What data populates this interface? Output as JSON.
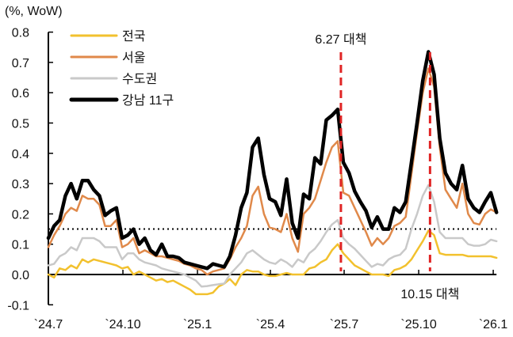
{
  "chart_data": {
    "type": "line",
    "unit_label": "(%, WoW)",
    "ylim": [
      -0.1,
      0.8
    ],
    "yticks": [
      "0.8",
      "0.7",
      "0.6",
      "0.5",
      "0.4",
      "0.3",
      "0.2",
      "0.1",
      "0.0",
      "-0.1"
    ],
    "ytick_values": [
      0.8,
      0.7,
      0.6,
      0.5,
      0.4,
      0.3,
      0.2,
      0.1,
      0.0,
      -0.1
    ],
    "xticks": [
      {
        "date": "2024-07-01",
        "label": "`24.7"
      },
      {
        "date": "2024-10-01",
        "label": "`24.10"
      },
      {
        "date": "2025-01-01",
        "label": "`25.1"
      },
      {
        "date": "2025-04-01",
        "label": "`25.4"
      },
      {
        "date": "2025-07-01",
        "label": "`25.7"
      },
      {
        "date": "2025-10-01",
        "label": "`25.10"
      },
      {
        "date": "2026-01-01",
        "label": "`26.1"
      }
    ],
    "grid": false,
    "legend_placement": "top-left",
    "reference_line": {
      "y": 0.15,
      "style": "dotted",
      "color": "#000000"
    },
    "annotations": [
      {
        "date": "2025-06-27",
        "label": "6.27 대책",
        "label_position": "top",
        "color": "#E02424"
      },
      {
        "date": "2025-10-15",
        "label": "10.15 대책",
        "label_position": "bottom",
        "color": "#E02424"
      }
    ],
    "x": [
      "2024-07-01",
      "2024-07-08",
      "2024-07-15",
      "2024-07-22",
      "2024-07-29",
      "2024-08-05",
      "2024-08-12",
      "2024-08-19",
      "2024-08-26",
      "2024-09-02",
      "2024-09-09",
      "2024-09-16",
      "2024-09-23",
      "2024-09-30",
      "2024-10-07",
      "2024-10-14",
      "2024-10-21",
      "2024-10-28",
      "2024-11-04",
      "2024-11-11",
      "2024-11-18",
      "2024-11-25",
      "2024-12-02",
      "2024-12-09",
      "2024-12-16",
      "2024-12-23",
      "2024-12-30",
      "2025-01-06",
      "2025-01-13",
      "2025-01-20",
      "2025-01-27",
      "2025-02-03",
      "2025-02-10",
      "2025-02-17",
      "2025-02-24",
      "2025-03-03",
      "2025-03-10",
      "2025-03-17",
      "2025-03-24",
      "2025-03-31",
      "2025-04-07",
      "2025-04-14",
      "2025-04-21",
      "2025-04-28",
      "2025-05-05",
      "2025-05-12",
      "2025-05-19",
      "2025-05-26",
      "2025-06-02",
      "2025-06-09",
      "2025-06-16",
      "2025-06-23",
      "2025-06-30",
      "2025-07-07",
      "2025-07-14",
      "2025-07-21",
      "2025-07-28",
      "2025-08-04",
      "2025-08-11",
      "2025-08-18",
      "2025-08-25",
      "2025-09-01",
      "2025-09-08",
      "2025-09-15",
      "2025-09-22",
      "2025-09-29",
      "2025-10-06",
      "2025-10-13",
      "2025-10-20",
      "2025-10-27",
      "2025-11-03",
      "2025-11-10",
      "2025-11-17",
      "2025-11-24",
      "2025-12-01",
      "2025-12-08",
      "2025-12-15",
      "2025-12-22",
      "2025-12-29",
      "2026-01-05"
    ],
    "series": [
      {
        "name": "전국",
        "color": "#F2C12E",
        "values": [
          0.0,
          -0.01,
          0.02,
          0.015,
          0.03,
          0.02,
          0.05,
          0.04,
          0.05,
          0.045,
          0.04,
          0.035,
          0.03,
          0.02,
          0.025,
          0.0,
          0.01,
          0.0,
          -0.01,
          -0.02,
          -0.015,
          -0.025,
          -0.02,
          -0.03,
          -0.04,
          -0.05,
          -0.065,
          -0.065,
          -0.065,
          -0.06,
          -0.04,
          -0.03,
          -0.015,
          -0.035,
          0.0,
          0.015,
          0.01,
          0.01,
          0.0,
          -0.005,
          -0.005,
          0.0,
          0.005,
          0.0,
          0.0,
          0.0,
          0.02,
          0.025,
          0.04,
          0.05,
          0.08,
          0.1,
          0.07,
          0.05,
          0.03,
          0.02,
          0.01,
          0.0,
          0.0,
          0.0,
          -0.005,
          0.015,
          0.02,
          0.03,
          0.05,
          0.08,
          0.11,
          0.145,
          0.13,
          0.07,
          0.065,
          0.065,
          0.065,
          0.065,
          0.06,
          0.06,
          0.06,
          0.06,
          0.06,
          0.055
        ]
      },
      {
        "name": "서울",
        "color": "#E0894A",
        "values": [
          0.09,
          0.13,
          0.16,
          0.2,
          0.22,
          0.21,
          0.26,
          0.25,
          0.25,
          0.23,
          0.16,
          0.16,
          0.18,
          0.09,
          0.1,
          0.12,
          0.07,
          0.08,
          0.07,
          0.06,
          0.06,
          0.055,
          0.05,
          0.045,
          0.035,
          0.03,
          0.02,
          0.015,
          0.0,
          0.01,
          0.015,
          0.02,
          0.05,
          0.09,
          0.12,
          0.16,
          0.26,
          0.29,
          0.2,
          0.155,
          0.15,
          0.14,
          0.2,
          0.12,
          0.075,
          0.2,
          0.22,
          0.25,
          0.31,
          0.37,
          0.42,
          0.44,
          0.27,
          0.26,
          0.22,
          0.18,
          0.14,
          0.095,
          0.12,
          0.1,
          0.12,
          0.16,
          0.17,
          0.19,
          0.33,
          0.47,
          0.6,
          0.68,
          0.62,
          0.42,
          0.28,
          0.25,
          0.22,
          0.3,
          0.2,
          0.17,
          0.165,
          0.2,
          0.215,
          0.205
        ]
      },
      {
        "name": "수도권",
        "color": "#C9C9C9",
        "values": [
          0.03,
          0.035,
          0.06,
          0.07,
          0.09,
          0.08,
          0.12,
          0.12,
          0.12,
          0.11,
          0.09,
          0.09,
          0.09,
          0.05,
          0.07,
          0.07,
          0.05,
          0.04,
          0.035,
          0.03,
          0.02,
          0.015,
          0.01,
          0.005,
          0.0,
          -0.01,
          -0.02,
          -0.04,
          -0.038,
          -0.035,
          -0.032,
          -0.03,
          0.0,
          0.02,
          0.04,
          0.07,
          0.08,
          0.065,
          0.05,
          0.04,
          0.035,
          0.05,
          0.04,
          0.025,
          0.05,
          0.04,
          0.07,
          0.085,
          0.11,
          0.14,
          0.165,
          0.18,
          0.12,
          0.1,
          0.085,
          0.065,
          0.045,
          0.025,
          0.035,
          0.03,
          0.05,
          0.06,
          0.065,
          0.085,
          0.15,
          0.2,
          0.26,
          0.295,
          0.24,
          0.14,
          0.12,
          0.12,
          0.12,
          0.12,
          0.1,
          0.095,
          0.095,
          0.1,
          0.115,
          0.11
        ]
      },
      {
        "name": "강남 11구",
        "color": "#000000",
        "values": [
          0.12,
          0.16,
          0.18,
          0.26,
          0.3,
          0.25,
          0.31,
          0.31,
          0.28,
          0.26,
          0.195,
          0.21,
          0.22,
          0.12,
          0.13,
          0.15,
          0.1,
          0.12,
          0.08,
          0.065,
          0.1,
          0.06,
          0.06,
          0.055,
          0.04,
          0.035,
          0.03,
          0.025,
          0.02,
          0.035,
          0.03,
          0.025,
          0.06,
          0.13,
          0.22,
          0.27,
          0.42,
          0.45,
          0.33,
          0.25,
          0.24,
          0.195,
          0.315,
          0.17,
          0.12,
          0.265,
          0.25,
          0.385,
          0.365,
          0.51,
          0.525,
          0.545,
          0.37,
          0.335,
          0.275,
          0.24,
          0.21,
          0.155,
          0.19,
          0.15,
          0.15,
          0.22,
          0.205,
          0.24,
          0.37,
          0.5,
          0.64,
          0.735,
          0.66,
          0.45,
          0.335,
          0.3,
          0.28,
          0.36,
          0.25,
          0.22,
          0.205,
          0.24,
          0.27,
          0.205
        ]
      }
    ]
  }
}
